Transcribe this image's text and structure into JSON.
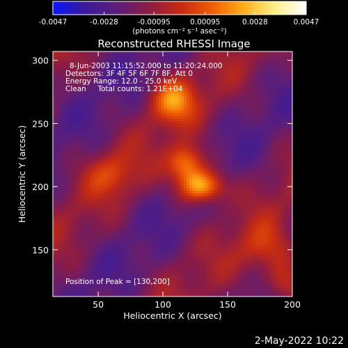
{
  "chart_data": {
    "type": "heatmap",
    "title": "Reconstructed RHESSI Image",
    "xlabel": "Heliocentric X (arcsec)",
    "ylabel": "Heliocentric Y (arcsec)",
    "xlim": [
      15,
      200
    ],
    "ylim": [
      113,
      307
    ],
    "x_ticks": [
      50,
      100,
      150,
      200
    ],
    "y_ticks": [
      150,
      200,
      250,
      300
    ],
    "colorbar": {
      "ticks": [
        "-0.0047",
        "-0.0028",
        "-0.00095",
        "0.00095",
        "0.0028",
        "0.0047"
      ],
      "tick_values": [
        -0.0047,
        -0.0028,
        -0.00095,
        0.00095,
        0.0028,
        0.0047
      ],
      "range": [
        -0.0047,
        0.0047
      ],
      "units_label": "(photons cm⁻² s⁻¹ asec⁻²)",
      "colormap": [
        "#0a14ff",
        "#3a1a99",
        "#5a1e7a",
        "#8a1c46",
        "#c42a12",
        "#ee5a06",
        "#ffad18",
        "#fff08a",
        "#ffffff"
      ]
    },
    "info_lines": [
      "8-Jun-2003 11:15:52.000 to 11:20:24.000",
      "Detectors: 3F 4F 5F 6F 7F 8F, Att 0",
      "Energy Range: 12.0 - 25.0 keV",
      "Clean     Total counts: 1.21E+04"
    ],
    "peak_label": "Position of Peak = [130,200]",
    "peak": [
      130,
      200
    ],
    "sources": [
      {
        "x": 130,
        "y": 200,
        "peak": 0.0047,
        "sigma_x": 12,
        "sigma_y": 9
      },
      {
        "x": 118,
        "y": 218,
        "peak": 0.0036,
        "sigma_x": 10,
        "sigma_y": 10
      },
      {
        "x": 108,
        "y": 268,
        "peak": 0.003,
        "sigma_x": 12,
        "sigma_y": 12
      },
      {
        "x": 60,
        "y": 210,
        "peak": 0.0016,
        "sigma_x": 14,
        "sigma_y": 12
      },
      {
        "x": 180,
        "y": 150,
        "peak": 0.0017,
        "sigma_x": 14,
        "sigma_y": 14
      },
      {
        "x": 195,
        "y": 122,
        "peak": 0.0024,
        "sigma_x": 10,
        "sigma_y": 12
      }
    ]
  },
  "timestamp": "2-May-2022 10:22"
}
